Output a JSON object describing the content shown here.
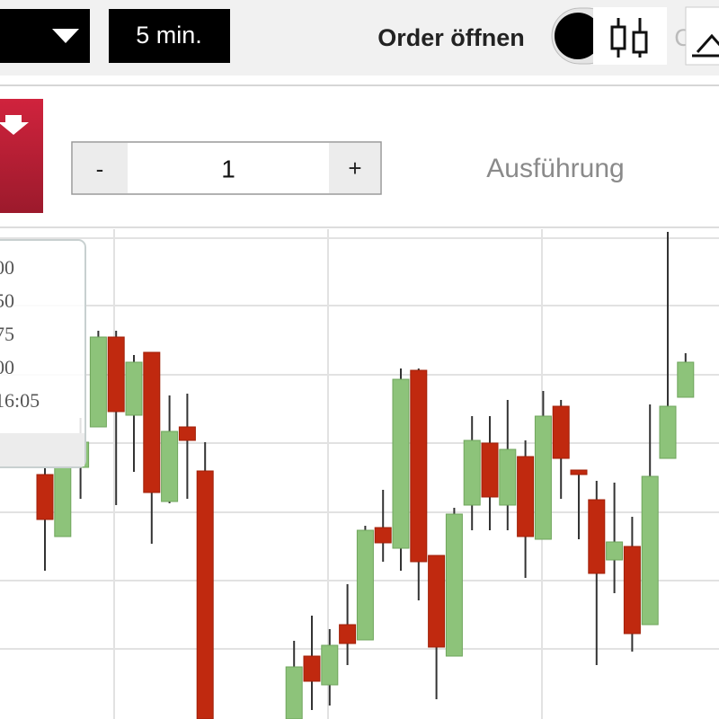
{
  "toolbar": {
    "interval": "5 min.",
    "order_label": "Order öffnen",
    "partial_label": "C"
  },
  "order": {
    "minus": "-",
    "quantity": "1",
    "plus": "+",
    "execution": "Ausführung"
  },
  "tooltip": {
    "lines": [
      "00",
      "50",
      "75",
      "00",
      "16:05"
    ]
  },
  "chart_data": {
    "type": "candlestick",
    "categories": [
      null,
      null,
      null,
      null,
      null,
      null,
      null,
      null,
      null,
      null,
      null,
      null,
      null,
      null,
      null,
      null,
      null,
      null,
      null,
      null,
      null,
      null,
      null,
      null,
      null,
      null,
      null,
      null,
      null,
      null,
      null,
      null,
      null,
      null,
      null,
      null,
      null
    ],
    "open": [
      272,
      203,
      280,
      325,
      425,
      338,
      408,
      242,
      325,
      276,
      null,
      null,
      null,
      null,
      0,
      70,
      38,
      105,
      88,
      213,
      190,
      388,
      182,
      70,
      238,
      307,
      238,
      292,
      200,
      348,
      277,
      244,
      177,
      192,
      105,
      290,
      358
    ],
    "high": [
      295,
      310,
      335,
      432,
      432,
      405,
      408,
      360,
      362,
      308,
      null,
      null,
      null,
      null,
      87,
      115,
      100,
      150,
      215,
      255,
      390,
      390,
      182,
      235,
      337,
      337,
      355,
      310,
      365,
      355,
      277,
      265,
      263,
      225,
      350,
      542,
      407
    ],
    "low": [
      165,
      203,
      245,
      325,
      238,
      275,
      195,
      240,
      245,
      0,
      null,
      null,
      null,
      null,
      0,
      10,
      15,
      60,
      88,
      175,
      165,
      132,
      22,
      70,
      210,
      210,
      210,
      157,
      200,
      245,
      200,
      60,
      140,
      75,
      105,
      290,
      358
    ],
    "close": [
      222,
      280,
      308,
      425,
      342,
      397,
      252,
      320,
      310,
      0,
      null,
      null,
      null,
      null,
      58,
      42,
      82,
      84,
      210,
      196,
      378,
      175,
      80,
      228,
      310,
      247,
      300,
      203,
      337,
      290,
      272,
      162,
      197,
      95,
      270,
      348,
      397
    ],
    "up_color": "#8dc37a",
    "down_color": "#c0290f",
    "wick_color": "#333333",
    "ylim": [
      0,
      545
    ]
  }
}
